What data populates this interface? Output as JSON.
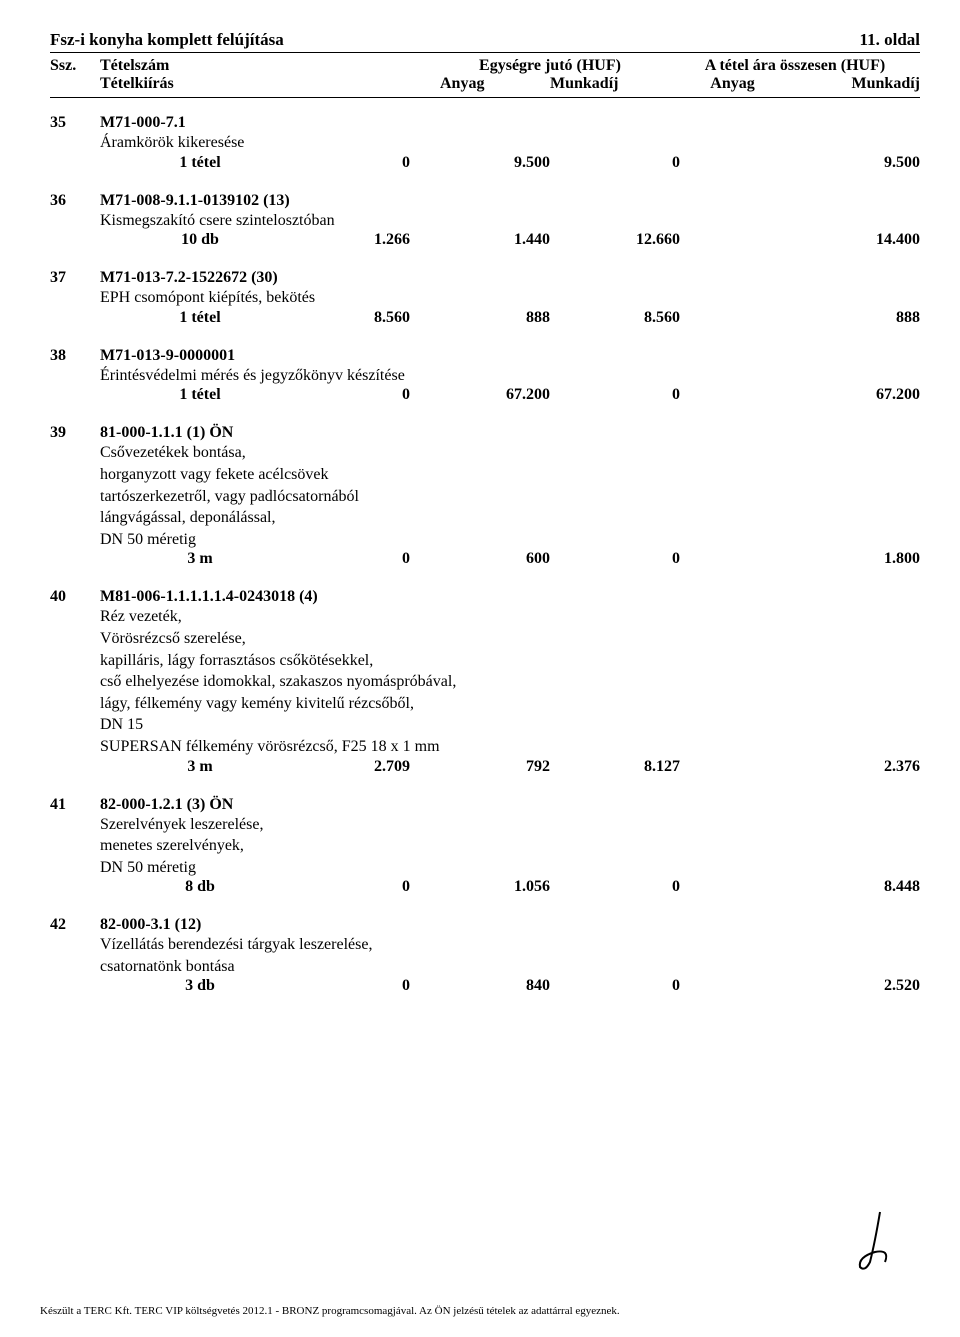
{
  "header": {
    "title": "Fsz-i konyha komplett felújítása",
    "page": "11. oldal"
  },
  "columns": {
    "ssz": "Ssz.",
    "tetelszam": "Tételszám",
    "tetelkiiras": "Tételkiírás",
    "egysegre": "Egységre jutó (HUF)",
    "osszesen": "A tétel ára összesen (HUF)",
    "anyag": "Anyag",
    "munkadij": "Munkadíj"
  },
  "items": [
    {
      "ssz": "35",
      "code": "M71-000-7.1",
      "desc": "Áramkörök kikeresése",
      "qty": "1  tétel",
      "anyag1": "0",
      "munka1": "9.500",
      "anyag2": "0",
      "munka2": "9.500"
    },
    {
      "ssz": "36",
      "code": "M71-008-9.1.1-0139102 (13)",
      "desc": "Kismegszakító csere szintelosztóban",
      "qty": "10  db",
      "anyag1": "1.266",
      "munka1": "1.440",
      "anyag2": "12.660",
      "munka2": "14.400"
    },
    {
      "ssz": "37",
      "code": "M71-013-7.2-1522672 (30)",
      "desc": "EPH csomópont kiépítés, bekötés",
      "qty": "1  tétel",
      "anyag1": "8.560",
      "munka1": "888",
      "anyag2": "8.560",
      "munka2": "888"
    },
    {
      "ssz": "38",
      "code": "M71-013-9-0000001",
      "desc": "Érintésvédelmi mérés és jegyzőkönyv készítése",
      "qty": "1  tétel",
      "anyag1": "0",
      "munka1": "67.200",
      "anyag2": "0",
      "munka2": "67.200"
    },
    {
      "ssz": "39",
      "code": "81-000-1.1.1 (1) ÖN",
      "desc": "Csővezetékek bontása,\nhorganyzott vagy fekete acélcsövek\ntartószerkezetről, vagy padlócsatornából\nlángvágással, deponálással,\nDN 50 méretig",
      "qty": "3  m",
      "anyag1": "0",
      "munka1": "600",
      "anyag2": "0",
      "munka2": "1.800"
    },
    {
      "ssz": "40",
      "code": "M81-006-1.1.1.1.1.4-0243018 (4)",
      "desc": "Réz vezeték,\nVörösrézcső szerelése,\nkapilláris, lágy forrasztásos csőkötésekkel,\ncső elhelyezése idomokkal, szakaszos nyomáspróbával,\nlágy, félkemény vagy kemény kivitelű rézcsőből,\nDN 15\nSUPERSAN félkemény vörösrézcső, F25  18 x 1 mm",
      "qty": "3  m",
      "anyag1": "2.709",
      "munka1": "792",
      "anyag2": "8.127",
      "munka2": "2.376"
    },
    {
      "ssz": "41",
      "code": "82-000-1.2.1 (3) ÖN",
      "desc": "Szerelvények leszerelése,\nmenetes szerelvények,\nDN 50 méretig",
      "qty": "8  db",
      "anyag1": "0",
      "munka1": "1.056",
      "anyag2": "0",
      "munka2": "8.448"
    },
    {
      "ssz": "42",
      "code": "82-000-3.1 (12)",
      "desc": "Vízellátás berendezési tárgyak leszerelése,\ncsatornatönk bontása",
      "qty": "3  db",
      "anyag1": "0",
      "munka1": "840",
      "anyag2": "0",
      "munka2": "2.520"
    }
  ],
  "footer": "Készült a TERC Kft. TERC VIP költségvetés 2012.1 - BRONZ  programcsomagjával. Az ÖN jelzésű tételek az adattárral egyeznek."
}
